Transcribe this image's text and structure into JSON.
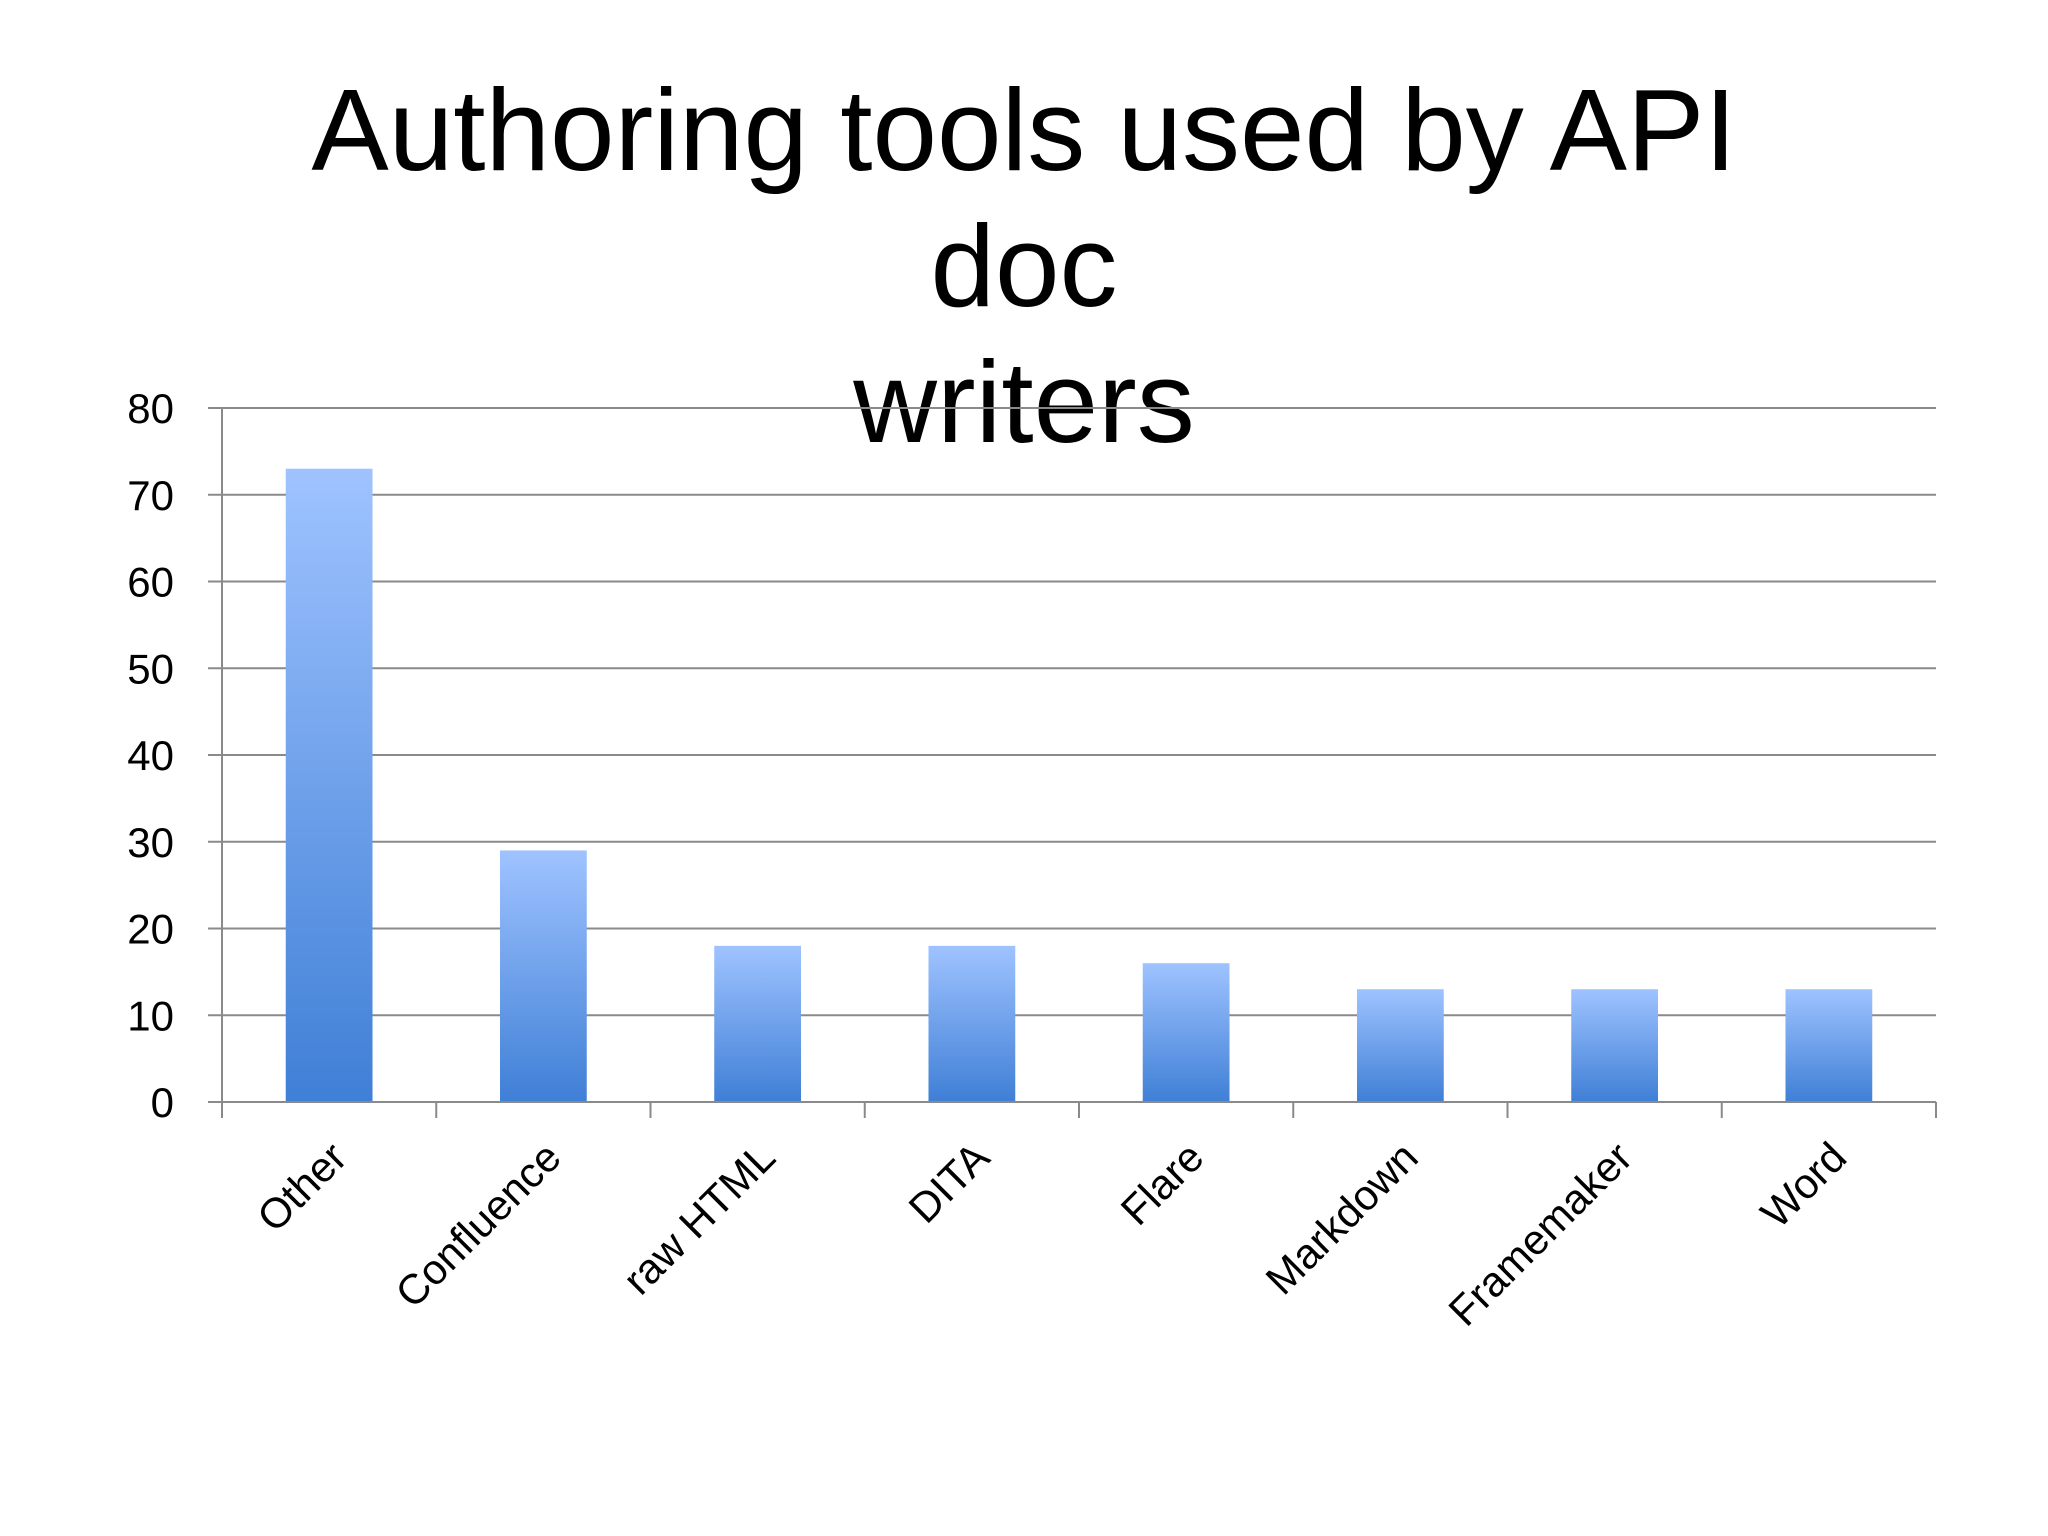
{
  "slide": {
    "title_line1": "Authoring tools used by API doc",
    "title_line2": "writers"
  },
  "colors": {
    "bar_top": "#9fc3ff",
    "bar_bottom": "#3f7fd6",
    "gridline": "#8a8a8a",
    "axis": "#8a8a8a"
  },
  "chart_data": {
    "type": "bar",
    "title": "Authoring tools used by API doc writers",
    "xlabel": "",
    "ylabel": "",
    "categories": [
      "Other",
      "Confluence",
      "raw HTML",
      "DITA",
      "Flare",
      "Markdown",
      "Framemaker",
      "Word"
    ],
    "values": [
      73,
      29,
      18,
      18,
      16,
      13,
      13,
      13
    ],
    "ylim": [
      0,
      80
    ],
    "yticks": [
      0,
      10,
      20,
      30,
      40,
      50,
      60,
      70,
      80
    ],
    "grid": true,
    "legend": "none"
  }
}
